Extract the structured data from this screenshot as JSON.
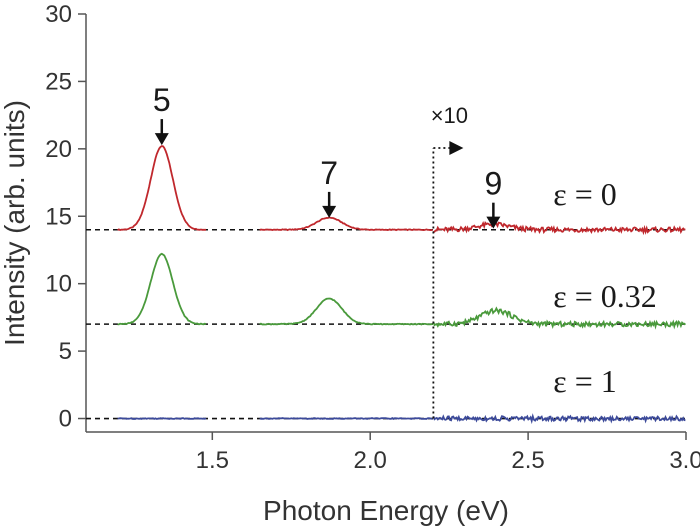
{
  "chart_data": {
    "type": "line",
    "title": "",
    "xlabel": "Photon Energy (eV)",
    "ylabel": "Intensity (arb. units)",
    "xlim": [
      1.1,
      3.0
    ],
    "ylim": [
      -1,
      30
    ],
    "x_ticks": [
      "1.5",
      "2.0",
      "2.5",
      "3.0"
    ],
    "y_ticks": [
      "0",
      "5",
      "10",
      "15",
      "20",
      "25",
      "30"
    ],
    "grid": false,
    "legend": "none",
    "series": [
      {
        "name": "ε = 0",
        "color": "#c0282d",
        "baseline": 14,
        "peaks": [
          {
            "x": 1.34,
            "height": 6.2,
            "width": 0.035
          },
          {
            "x": 1.87,
            "height": 0.9,
            "width": 0.04
          },
          {
            "x": 2.39,
            "height": 0.4,
            "width": 0.05
          }
        ]
      },
      {
        "name": "ε = 0.32",
        "color": "#4a9a3c",
        "baseline": 7,
        "peaks": [
          {
            "x": 1.34,
            "height": 5.2,
            "width": 0.035
          },
          {
            "x": 1.87,
            "height": 1.9,
            "width": 0.04
          },
          {
            "x": 2.4,
            "height": 1.0,
            "width": 0.05
          }
        ]
      },
      {
        "name": "ε = 1",
        "color": "#3c4a9a",
        "baseline": 0,
        "peaks": []
      }
    ],
    "annotations": {
      "peak_labels": [
        {
          "text": "5",
          "x": 1.34,
          "y": 22.8
        },
        {
          "text": "7",
          "x": 1.87,
          "y": 17.4
        },
        {
          "text": "9",
          "x": 2.39,
          "y": 16.6
        }
      ],
      "scale_note": {
        "text": "×10",
        "x": 2.2
      },
      "series_labels": [
        "ε = 0",
        "ε = 0.32",
        "ε = 1"
      ]
    }
  }
}
